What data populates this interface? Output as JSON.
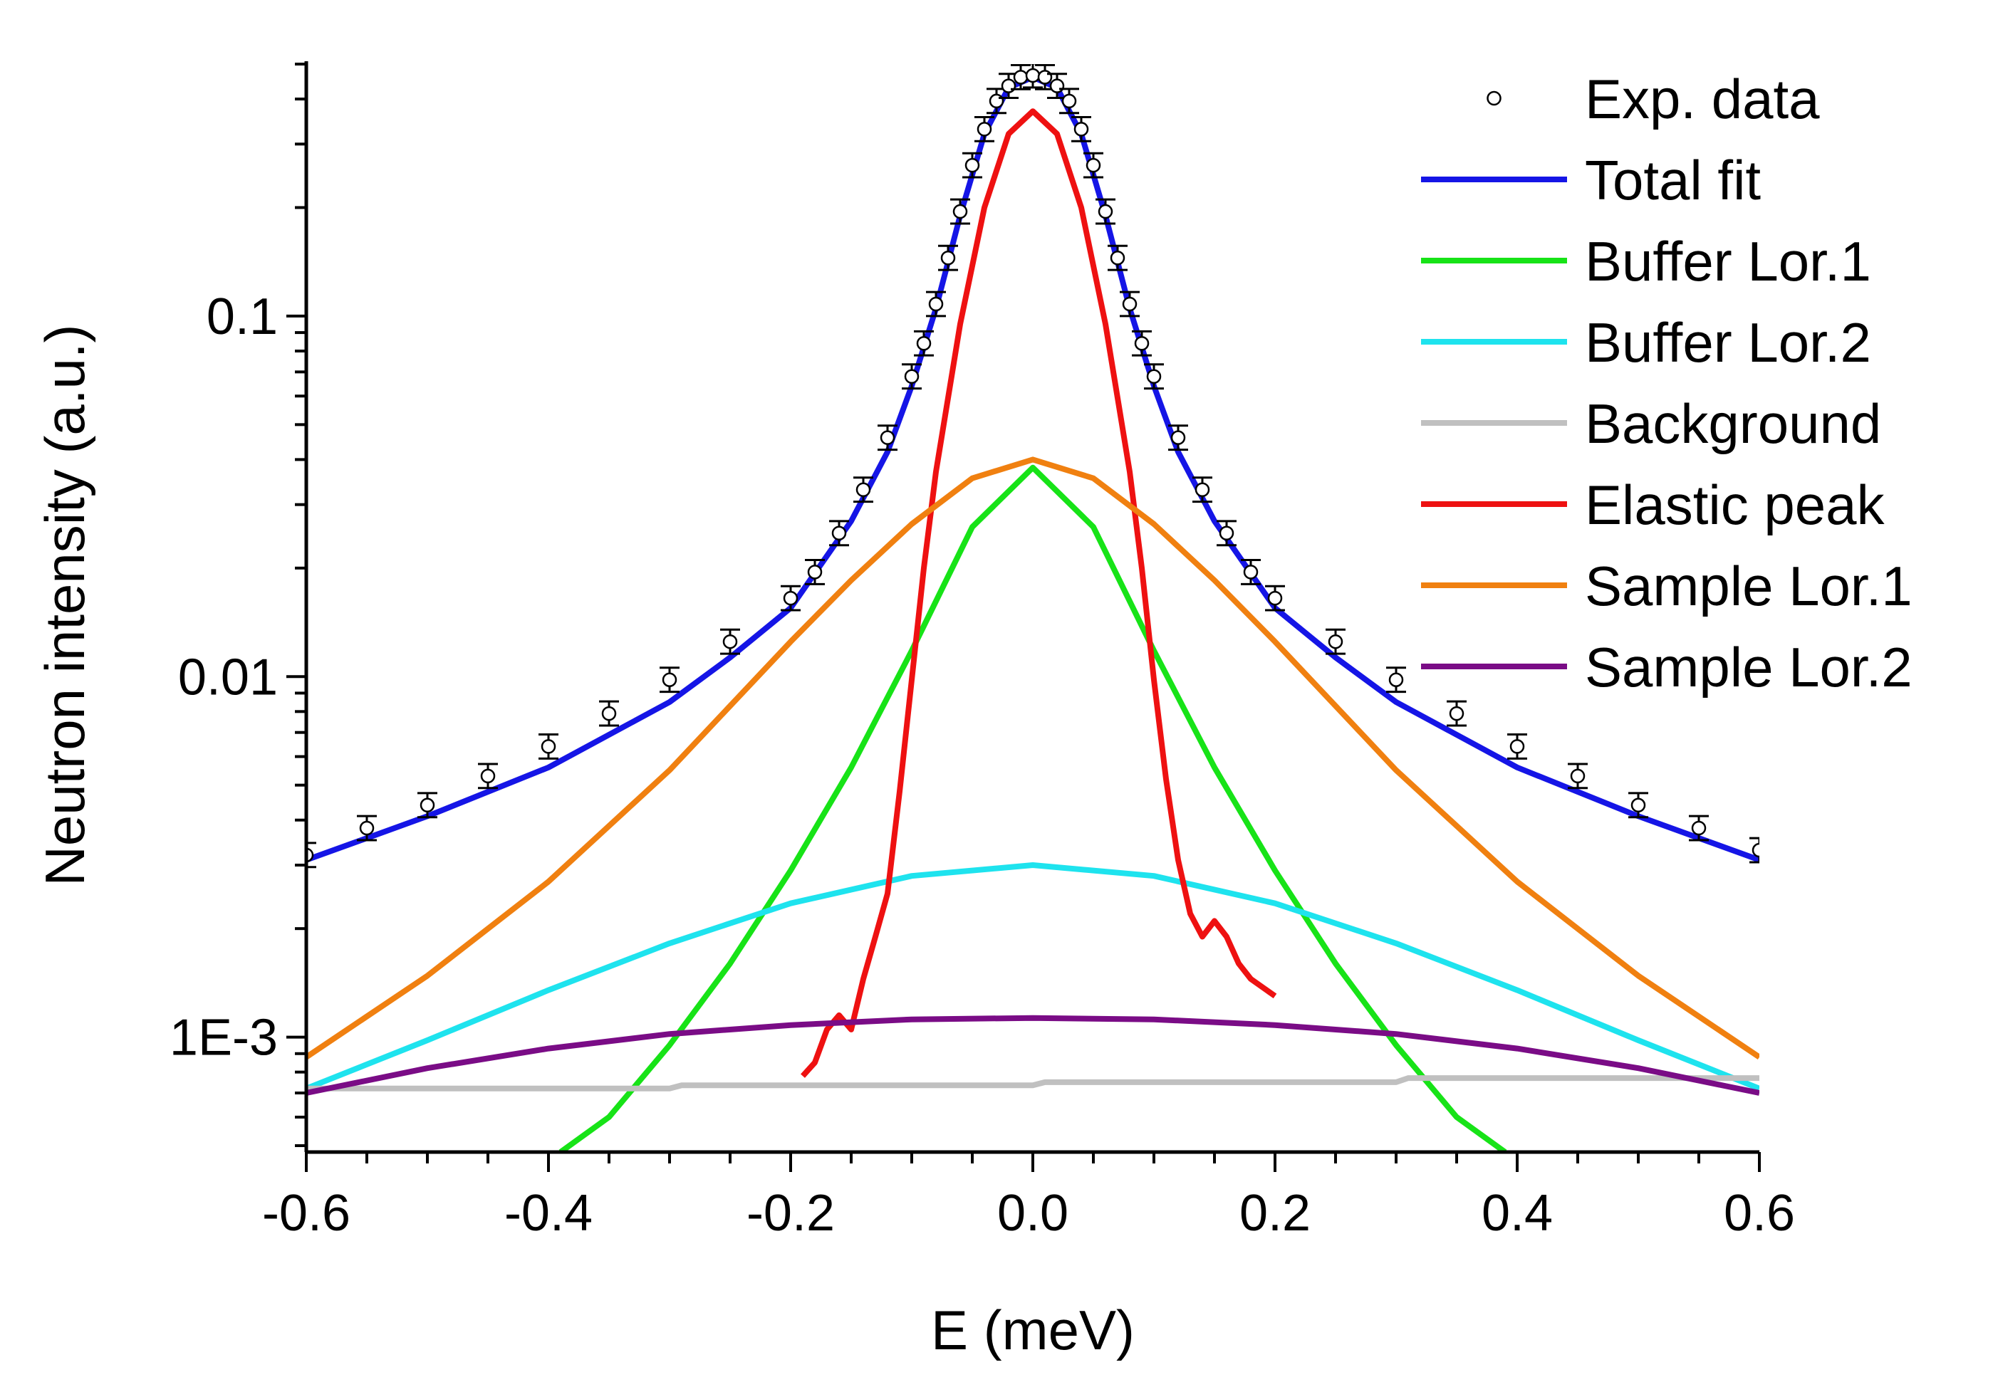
{
  "chart_data": {
    "type": "line",
    "title": "",
    "xlabel": "E (meV)",
    "ylabel": "Neutron intensity (a.u.)",
    "xlim": [
      -0.6,
      0.6
    ],
    "ylim": [
      0.00048,
      0.5
    ],
    "yscale": "log",
    "xticks": [
      -0.6,
      -0.4,
      -0.2,
      0.0,
      0.2,
      0.4,
      0.6
    ],
    "xtick_labels": [
      "-0.6",
      "-0.4",
      "-0.2",
      "0.0",
      "0.2",
      "0.4",
      "0.6"
    ],
    "yticks": [
      0.001,
      0.01,
      0.1
    ],
    "ytick_labels": [
      "1E-3",
      "0.01",
      "0.1"
    ],
    "legend_position": "top-right",
    "grid": false,
    "series": [
      {
        "name": "Exp. data",
        "style": "markers-errorbars",
        "color": "#000000",
        "x": [
          -0.6,
          -0.55,
          -0.5,
          -0.45,
          -0.4,
          -0.35,
          -0.3,
          -0.25,
          -0.2,
          -0.18,
          -0.16,
          -0.14,
          -0.12,
          -0.1,
          -0.09,
          -0.08,
          -0.07,
          -0.06,
          -0.05,
          -0.04,
          -0.03,
          -0.02,
          -0.01,
          0.0,
          0.01,
          0.02,
          0.03,
          0.04,
          0.05,
          0.06,
          0.07,
          0.08,
          0.09,
          0.1,
          0.12,
          0.14,
          0.16,
          0.18,
          0.2,
          0.25,
          0.3,
          0.35,
          0.4,
          0.45,
          0.5,
          0.55,
          0.6
        ],
        "y": [
          0.0032,
          0.0038,
          0.0044,
          0.0053,
          0.0064,
          0.0079,
          0.0098,
          0.0125,
          0.0165,
          0.0195,
          0.025,
          0.033,
          0.046,
          0.068,
          0.084,
          0.108,
          0.145,
          0.195,
          0.262,
          0.33,
          0.395,
          0.435,
          0.46,
          0.465,
          0.46,
          0.435,
          0.395,
          0.33,
          0.262,
          0.195,
          0.145,
          0.108,
          0.084,
          0.068,
          0.046,
          0.033,
          0.025,
          0.0195,
          0.0165,
          0.0125,
          0.0098,
          0.0079,
          0.0064,
          0.0053,
          0.0044,
          0.0038,
          0.0033
        ]
      },
      {
        "name": "Total fit",
        "color": "#1515e6",
        "x": [
          -0.6,
          -0.5,
          -0.4,
          -0.3,
          -0.25,
          -0.2,
          -0.15,
          -0.12,
          -0.1,
          -0.08,
          -0.06,
          -0.04,
          -0.02,
          0.0,
          0.02,
          0.04,
          0.06,
          0.08,
          0.1,
          0.12,
          0.15,
          0.2,
          0.25,
          0.3,
          0.4,
          0.5,
          0.6
        ],
        "y": [
          0.0031,
          0.0041,
          0.0056,
          0.0085,
          0.0113,
          0.0155,
          0.027,
          0.042,
          0.064,
          0.105,
          0.19,
          0.32,
          0.43,
          0.46,
          0.43,
          0.32,
          0.19,
          0.105,
          0.064,
          0.042,
          0.027,
          0.0155,
          0.0113,
          0.0085,
          0.0056,
          0.0041,
          0.0031
        ]
      },
      {
        "name": "Buffer Lor.1",
        "color": "#17e317",
        "x": [
          -0.39,
          -0.35,
          -0.3,
          -0.25,
          -0.2,
          -0.15,
          -0.1,
          -0.05,
          0.0,
          0.05,
          0.1,
          0.15,
          0.2,
          0.25,
          0.3,
          0.35,
          0.39
        ],
        "y": [
          0.00048,
          0.0006,
          0.00095,
          0.0016,
          0.0029,
          0.0056,
          0.0118,
          0.026,
          0.038,
          0.026,
          0.0118,
          0.0056,
          0.0029,
          0.0016,
          0.00095,
          0.0006,
          0.00048
        ]
      },
      {
        "name": "Buffer Lor.2",
        "color": "#1ee3ee",
        "x": [
          -0.6,
          -0.5,
          -0.4,
          -0.3,
          -0.2,
          -0.1,
          0.0,
          0.1,
          0.2,
          0.3,
          0.4,
          0.5,
          0.6
        ],
        "y": [
          0.00072,
          0.00098,
          0.00135,
          0.00182,
          0.00235,
          0.0028,
          0.003,
          0.0028,
          0.00235,
          0.00182,
          0.00135,
          0.00098,
          0.00072
        ]
      },
      {
        "name": "Background",
        "color": "#c0c0c0",
        "x": [
          -0.6,
          -0.3,
          -0.29,
          0.0,
          0.01,
          0.3,
          0.31,
          0.6
        ],
        "y": [
          0.00072,
          0.00072,
          0.000735,
          0.000735,
          0.00075,
          0.00075,
          0.00077,
          0.00077
        ]
      },
      {
        "name": "Elastic peak",
        "color": "#ee1111",
        "x": [
          -0.19,
          -0.18,
          -0.17,
          -0.16,
          -0.15,
          -0.14,
          -0.13,
          -0.12,
          -0.11,
          -0.1,
          -0.09,
          -0.08,
          -0.06,
          -0.04,
          -0.02,
          0.0,
          0.02,
          0.04,
          0.06,
          0.08,
          0.09,
          0.1,
          0.11,
          0.12,
          0.13,
          0.14,
          0.15,
          0.16,
          0.17,
          0.18,
          0.2
        ],
        "y": [
          0.00078,
          0.00085,
          0.00105,
          0.00115,
          0.00105,
          0.00145,
          0.0019,
          0.0025,
          0.0048,
          0.0098,
          0.02,
          0.037,
          0.095,
          0.2,
          0.32,
          0.37,
          0.32,
          0.2,
          0.095,
          0.037,
          0.02,
          0.0098,
          0.0052,
          0.0031,
          0.0022,
          0.0019,
          0.0021,
          0.0019,
          0.0016,
          0.00145,
          0.0013
        ]
      },
      {
        "name": "Sample Lor.1",
        "color": "#f08010",
        "x": [
          -0.6,
          -0.5,
          -0.4,
          -0.3,
          -0.2,
          -0.15,
          -0.1,
          -0.05,
          0.0,
          0.05,
          0.1,
          0.15,
          0.2,
          0.3,
          0.4,
          0.5,
          0.6
        ],
        "y": [
          0.00088,
          0.00148,
          0.0027,
          0.0055,
          0.0125,
          0.0185,
          0.0265,
          0.0355,
          0.04,
          0.0355,
          0.0265,
          0.0185,
          0.0125,
          0.0055,
          0.0027,
          0.00148,
          0.00088
        ]
      },
      {
        "name": "Sample Lor.2",
        "color": "#7a0c86",
        "x": [
          -0.6,
          -0.5,
          -0.4,
          -0.3,
          -0.2,
          -0.1,
          0.0,
          0.1,
          0.2,
          0.3,
          0.4,
          0.5,
          0.6
        ],
        "y": [
          0.0007,
          0.00082,
          0.00093,
          0.00102,
          0.00108,
          0.00112,
          0.00113,
          0.00112,
          0.00108,
          0.00102,
          0.00093,
          0.00082,
          0.0007
        ]
      }
    ]
  }
}
